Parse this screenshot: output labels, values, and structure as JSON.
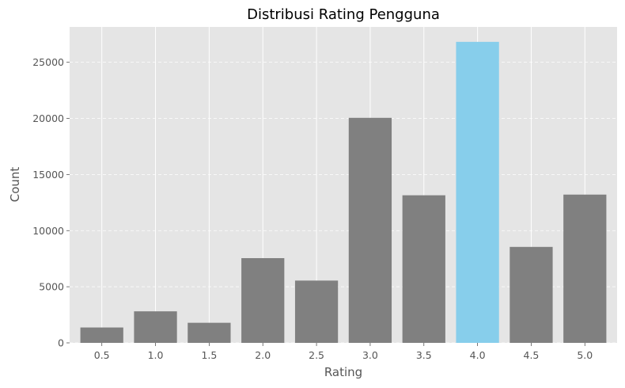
{
  "chart_data": {
    "type": "bar",
    "title": "Distribusi Rating Pengguna",
    "xlabel": "Rating",
    "ylabel": "Count",
    "categories": [
      "0.5",
      "1.0",
      "1.5",
      "2.0",
      "2.5",
      "3.0",
      "3.5",
      "4.0",
      "4.5",
      "5.0"
    ],
    "values": [
      1370,
      2810,
      1790,
      7550,
      5550,
      20050,
      13150,
      26820,
      8550,
      13210
    ],
    "highlight_category": "4.0",
    "ylim": [
      0,
      28150
    ],
    "yticks": [
      0,
      5000,
      10000,
      15000,
      20000,
      25000
    ],
    "grid": true,
    "colors": {
      "bar": "#808080",
      "highlight": "#87ceeb",
      "plot_background": "#e5e5e5",
      "grid": "#ffffff"
    }
  }
}
